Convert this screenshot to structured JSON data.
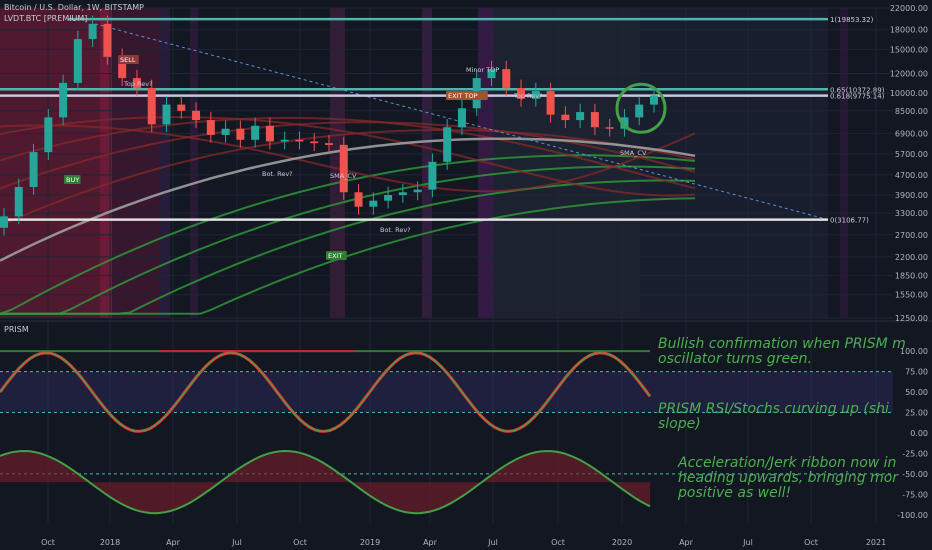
{
  "header": {
    "title": "Bitcoin / U.S. Dollar, 1W, BITSTAMP",
    "indicator": "LVDT.BTC [PREMIUM]",
    "prism_label": "PRISM"
  },
  "colors": {
    "background": "#131722",
    "bull": "#26a69a",
    "bear": "#ef5350",
    "fib_teal": "#4db6ac",
    "fib_white": "#e0e0e0",
    "ribbon_red": "#c62828",
    "ribbon_green": "#2e7d32",
    "annotation_green": "#4caf50"
  },
  "annotations": {
    "a1": "Bullish confirmation when PRISM m\noscillator turns green.",
    "a2": "PRISM RSI/Stochs curving up (shi\nslope)",
    "a3": "Acceleration/Jerk ribbon now in\nheading upwards, bringing mor\npositive as well!"
  },
  "chart_labels": {
    "sell": "SELL",
    "top_rev": "Top Rev?",
    "minor_top": "Minor TOP",
    "bot_rev": "Bot. Rev?",
    "exit": "EXIT",
    "buy": "BUY",
    "sma_cv": "SMA_CV",
    "ea_label": "EXIT  TOP"
  },
  "chart_data": [
    {
      "type": "line",
      "panel": "price",
      "y_scale": "log",
      "ylim": [
        1250,
        22000
      ],
      "y_ticks": [
        1250,
        1550,
        1850,
        2200,
        2700,
        3300,
        3900,
        4700,
        5700,
        6900,
        8500,
        10000,
        12000,
        15000,
        18000,
        22000
      ],
      "x_ticks": [
        "Oct",
        "2018",
        "Apr",
        "Jul",
        "Oct",
        "2019",
        "Apr",
        "Jul",
        "Oct",
        "2020",
        "Apr",
        "Jul",
        "Oct",
        "2021"
      ],
      "fib_levels": [
        {
          "label": "1(19853.32)",
          "value": 19853.32
        },
        {
          "label": "0.65(10372.89)",
          "value": 10372.89
        },
        {
          "label": "0.618(9775.14)",
          "value": 9775.14
        },
        {
          "label": "0(3106.77)",
          "value": 3106.77
        }
      ],
      "series": [
        {
          "values": [
            3200,
            4200,
            5800,
            8000,
            11000,
            16500,
            19000,
            14000,
            11500,
            10500,
            7500,
            9000,
            8500,
            7800,
            6800,
            7200,
            6500,
            7400,
            6400,
            6500,
            6400,
            6300,
            6200,
            4000,
            3500,
            3700,
            3900,
            4000,
            4100,
            5300,
            7300,
            8700,
            11500,
            12500,
            10500,
            9500,
            10200,
            8200,
            7800,
            8400,
            7300,
            7200,
            8000,
            9000,
            9800
          ]
        }
      ]
    },
    {
      "type": "line",
      "panel": "oscillator",
      "ylim": [
        -110,
        110
      ],
      "y_ticks": [
        100.0,
        75.0,
        50.0,
        25.0,
        0.0,
        -25.0,
        -50.0,
        -75.0,
        -100.0
      ]
    }
  ]
}
